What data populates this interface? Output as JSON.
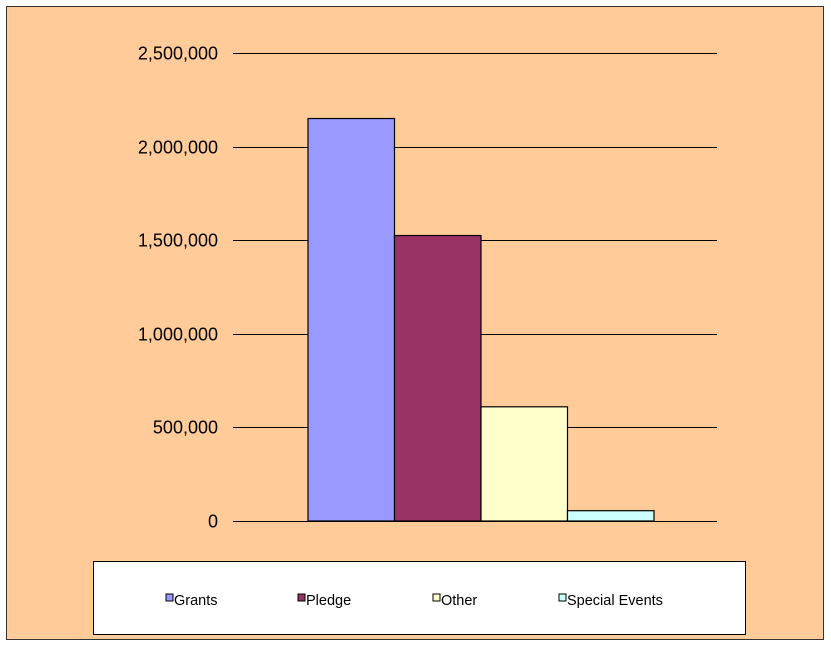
{
  "chart_data": {
    "type": "bar",
    "title": "",
    "xlabel": "",
    "ylabel": "",
    "categories": [
      ""
    ],
    "series": [
      {
        "name": "Grants",
        "values": [
          2150000
        ],
        "color": "#9999ff"
      },
      {
        "name": "Pledge",
        "values": [
          1525000
        ],
        "color": "#993366"
      },
      {
        "name": "Other",
        "values": [
          610000
        ],
        "color": "#ffffcc"
      },
      {
        "name": "Special Events",
        "values": [
          55000
        ],
        "color": "#ccffff"
      }
    ],
    "ylim": [
      0,
      2500000
    ],
    "yticks": [
      0,
      500000,
      1000000,
      1500000,
      2000000,
      2500000
    ],
    "ytick_labels": [
      "0",
      "500,000",
      "1,000,000",
      "1,500,000",
      "2,000,000",
      "2,500,000"
    ],
    "grid": "horizontal",
    "legend": "bottom",
    "colors": {
      "background": "#ffcc99",
      "gridline": "#000000",
      "bar_edge": "#000000",
      "legend_background": "#ffffff"
    }
  }
}
